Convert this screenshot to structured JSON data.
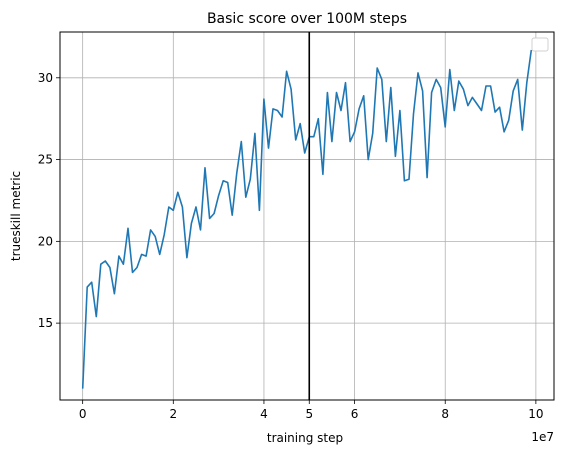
{
  "chart_data": {
    "type": "line",
    "title": "Basic score over 100M steps",
    "xlabel": "training step",
    "ylabel": "trueskill metric",
    "x_multiplier_label": "1e7",
    "xlim": [
      -0.5,
      10.4
    ],
    "ylim": [
      10.3,
      32.8
    ],
    "xticks": [
      0,
      2,
      4,
      5,
      6,
      8,
      10
    ],
    "xtick_labels": [
      "0",
      "2",
      "4",
      "5",
      "6",
      "8",
      "10"
    ],
    "yticks": [
      15,
      20,
      25,
      30
    ],
    "ytick_labels": [
      "15",
      "20",
      "25",
      "30"
    ],
    "grid": true,
    "legend": "empty box, top-right",
    "vertical_line": {
      "x": 5,
      "color": "#000000"
    },
    "series": [
      {
        "color": "#1f77b4",
        "x": [
          0.0,
          0.1,
          0.2,
          0.3,
          0.4,
          0.5,
          0.6,
          0.7,
          0.8,
          0.9,
          1.0,
          1.1,
          1.2,
          1.3,
          1.4,
          1.5,
          1.6,
          1.7,
          1.8,
          1.9,
          2.0,
          2.1,
          2.2,
          2.3,
          2.4,
          2.5,
          2.6,
          2.7,
          2.8,
          2.9,
          3.0,
          3.1,
          3.2,
          3.3,
          3.4,
          3.5,
          3.6,
          3.7,
          3.8,
          3.9,
          4.0,
          4.1,
          4.2,
          4.3,
          4.4,
          4.5,
          4.6,
          4.7,
          4.8,
          4.9,
          5.0,
          5.1,
          5.2,
          5.3,
          5.4,
          5.5,
          5.6,
          5.7,
          5.8,
          5.9,
          6.0,
          6.1,
          6.2,
          6.3,
          6.4,
          6.5,
          6.6,
          6.7,
          6.8,
          6.9,
          7.0,
          7.1,
          7.2,
          7.3,
          7.4,
          7.5,
          7.6,
          7.7,
          7.8,
          7.9,
          8.0,
          8.1,
          8.2,
          8.3,
          8.4,
          8.5,
          8.6,
          8.7,
          8.8,
          8.9,
          9.0,
          9.1,
          9.2,
          9.3,
          9.4,
          9.5,
          9.6,
          9.7,
          9.8,
          9.9
        ],
        "y": [
          11.0,
          17.2,
          17.5,
          15.4,
          18.6,
          18.8,
          18.4,
          16.8,
          19.1,
          18.6,
          20.8,
          18.1,
          18.4,
          19.2,
          19.1,
          20.7,
          20.3,
          19.2,
          20.4,
          22.1,
          21.9,
          23.0,
          22.1,
          19.0,
          21.1,
          22.1,
          20.7,
          24.5,
          21.4,
          21.7,
          22.8,
          23.7,
          23.6,
          21.6,
          24.2,
          26.1,
          22.7,
          23.8,
          26.6,
          21.9,
          28.7,
          25.7,
          28.1,
          28.0,
          27.6,
          30.4,
          29.3,
          26.2,
          27.2,
          25.4,
          26.4,
          26.4,
          27.5,
          24.1,
          29.1,
          26.1,
          29.1,
          28.0,
          29.7,
          26.1,
          26.7,
          28.1,
          28.9,
          25.0,
          26.6,
          30.6,
          29.9,
          26.1,
          29.4,
          25.2,
          28.0,
          23.7,
          23.8,
          27.8,
          30.3,
          29.2,
          23.9,
          29.1,
          29.9,
          29.4,
          27.0,
          30.5,
          28.0,
          29.8,
          29.3,
          28.3,
          28.8,
          28.4,
          28.0,
          29.5,
          29.5,
          27.9,
          28.2,
          26.7,
          27.4,
          29.2,
          29.9,
          26.8,
          29.7,
          31.7
        ]
      }
    ]
  }
}
